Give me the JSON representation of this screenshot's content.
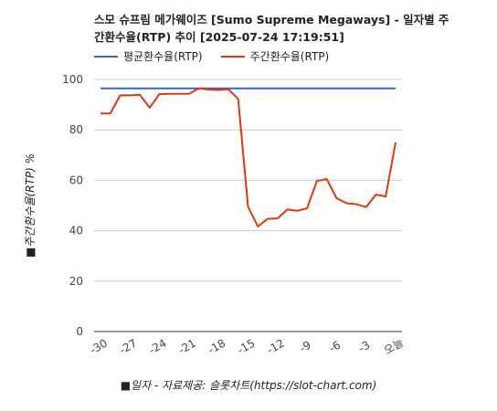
{
  "title_line1": "스모 슈프림 메가웨이즈 [Sumo Supreme Megaways] - 일자별 주",
  "title_line2": "간환수율(RTP) 추이 [2025-07-24 17:19:51]",
  "chart_data": {
    "type": "line",
    "title": "스모 슈프림 메가웨이즈 [Sumo Supreme Megaways] - 일자별 주간환수율(RTP) 추이 [2025-07-24 17:19:51]",
    "xlabel": "■일자 - 자료제공: 슬롯차트(https://slot-chart.com)",
    "ylabel": "■주간환수율(RTP) %",
    "ylim": [
      0,
      100
    ],
    "yticks": [
      0,
      20,
      40,
      60,
      80,
      100
    ],
    "xticks": [
      "-30",
      "-27",
      "-24",
      "-21",
      "-18",
      "-15",
      "-12",
      "-9",
      "-6",
      "-3",
      "오늘"
    ],
    "grid": true,
    "legend_position": "top-left",
    "x": [
      -30,
      -29,
      -28,
      -27,
      -26,
      -25,
      -24,
      -23,
      -22,
      -21,
      -20,
      -19,
      -18,
      -17,
      -16,
      -15,
      -14,
      -13,
      -12,
      -11,
      -10,
      -9,
      -8,
      -7,
      -6,
      -5,
      -4,
      -3,
      -2,
      -1,
      0
    ],
    "series": [
      {
        "name": "평균환수율(RTP)",
        "color": "#3366cc",
        "values": [
          96.5,
          96.5,
          96.5,
          96.5,
          96.5,
          96.5,
          96.5,
          96.5,
          96.5,
          96.5,
          96.5,
          96.5,
          96.5,
          96.5,
          96.5,
          96.5,
          96.5,
          96.5,
          96.5,
          96.5,
          96.5,
          96.5,
          96.5,
          96.5,
          96.5,
          96.5,
          96.5,
          96.5,
          96.5,
          96.5,
          96.5
        ]
      },
      {
        "name": "주간환수율(RTP)",
        "color": "#dc3912",
        "values": [
          86.5,
          86.5,
          93.7,
          93.7,
          93.9,
          88.8,
          94.2,
          94.3,
          94.3,
          94.3,
          96.5,
          96.0,
          95.8,
          96.1,
          92.3,
          49.5,
          41.7,
          44.7,
          44.9,
          48.4,
          47.9,
          48.9,
          59.7,
          60.5,
          52.9,
          50.9,
          50.5,
          49.4,
          54.3,
          53.6,
          75.0
        ]
      }
    ]
  }
}
